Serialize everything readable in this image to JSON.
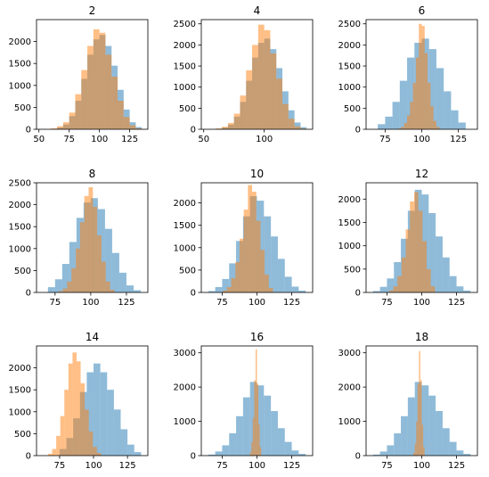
{
  "colors": {
    "blue": "#1f77b4",
    "orange": "#ff7f0e"
  },
  "chart_data": [
    {
      "type": "bar",
      "title": "2",
      "xlim": [
        48,
        140
      ],
      "ylim": [
        0,
        2500
      ],
      "xticks": [
        50,
        75,
        100,
        125
      ],
      "yticks": [
        0,
        500,
        1000,
        1500,
        2000
      ],
      "series": [
        {
          "color": "blue",
          "alpha": 0.5,
          "x": [
            62.5,
            67.5,
            72.5,
            77.5,
            82.5,
            87.5,
            92.5,
            97.5,
            102.5,
            107.5,
            112.5,
            117.5,
            122.5,
            127.5,
            132.5
          ],
          "values": [
            10,
            40,
            110,
            300,
            650,
            1150,
            1700,
            2050,
            2150,
            1900,
            1450,
            900,
            450,
            160,
            50
          ]
        },
        {
          "color": "orange",
          "alpha": 0.5,
          "x": [
            62.5,
            67.5,
            72.5,
            77.5,
            82.5,
            87.5,
            92.5,
            97.5,
            102.5,
            107.5,
            112.5,
            117.5,
            122.5,
            127.5,
            132.5
          ],
          "values": [
            20,
            70,
            160,
            380,
            800,
            1350,
            1900,
            2280,
            2200,
            1700,
            1200,
            650,
            280,
            90,
            20
          ]
        }
      ]
    },
    {
      "type": "bar",
      "title": "4",
      "xlim": [
        48,
        140
      ],
      "ylim": [
        0,
        2600
      ],
      "xticks": [
        50,
        100
      ],
      "yticks": [
        0,
        500,
        1000,
        1500,
        2000,
        2500
      ],
      "series": [
        {
          "color": "blue",
          "alpha": 0.5,
          "x": [
            62.5,
            67.5,
            72.5,
            77.5,
            82.5,
            87.5,
            92.5,
            97.5,
            102.5,
            107.5,
            112.5,
            117.5,
            122.5,
            127.5,
            132.5
          ],
          "values": [
            10,
            40,
            110,
            300,
            650,
            1150,
            1700,
            2050,
            2150,
            1900,
            1450,
            900,
            450,
            160,
            50
          ]
        },
        {
          "color": "orange",
          "alpha": 0.5,
          "x": [
            62.5,
            67.5,
            72.5,
            77.5,
            82.5,
            87.5,
            92.5,
            97.5,
            102.5,
            107.5,
            112.5,
            117.5,
            122.5,
            127.5,
            132.5
          ],
          "values": [
            20,
            60,
            150,
            370,
            800,
            1400,
            2000,
            2480,
            2350,
            1800,
            1200,
            600,
            250,
            70,
            15
          ]
        }
      ]
    },
    {
      "type": "bar",
      "title": "6",
      "xlim": [
        62,
        138
      ],
      "ylim": [
        0,
        2600
      ],
      "xticks": [
        75,
        100,
        125
      ],
      "yticks": [
        0,
        500,
        1000,
        1500,
        2000,
        2500
      ],
      "series": [
        {
          "color": "blue",
          "alpha": 0.5,
          "x": [
            72.5,
            77.5,
            82.5,
            87.5,
            92.5,
            97.5,
            102.5,
            107.5,
            112.5,
            117.5,
            122.5,
            127.5
          ],
          "values": [
            120,
            300,
            650,
            1150,
            1700,
            2050,
            2150,
            1900,
            1450,
            900,
            450,
            160
          ]
        },
        {
          "color": "orange",
          "alpha": 0.5,
          "x": [
            85,
            87,
            89,
            91,
            93,
            95,
            97,
            99,
            101,
            103,
            105,
            107,
            109,
            111
          ],
          "values": [
            20,
            60,
            150,
            330,
            650,
            1100,
            1700,
            2500,
            2450,
            1800,
            1100,
            550,
            200,
            60
          ]
        }
      ]
    },
    {
      "type": "bar",
      "title": "8",
      "xlim": [
        62,
        140
      ],
      "ylim": [
        0,
        2500
      ],
      "xticks": [
        75,
        100,
        125
      ],
      "yticks": [
        0,
        500,
        1000,
        1500,
        2000,
        2500
      ],
      "series": [
        {
          "color": "blue",
          "alpha": 0.5,
          "x": [
            72.5,
            77.5,
            82.5,
            87.5,
            92.5,
            97.5,
            102.5,
            107.5,
            112.5,
            117.5,
            122.5,
            127.5,
            132.5
          ],
          "values": [
            120,
            300,
            650,
            1150,
            1700,
            2050,
            2150,
            1900,
            1450,
            900,
            450,
            160,
            50
          ]
        },
        {
          "color": "orange",
          "alpha": 0.5,
          "x": [
            79,
            82,
            85,
            88,
            91,
            94,
            97,
            100,
            103,
            106,
            109,
            112,
            115
          ],
          "values": [
            30,
            90,
            250,
            550,
            1000,
            1600,
            2200,
            2400,
            1950,
            1300,
            700,
            250,
            60
          ]
        }
      ]
    },
    {
      "type": "bar",
      "title": "10",
      "xlim": [
        60,
        140
      ],
      "ylim": [
        0,
        2450
      ],
      "xticks": [
        75,
        100,
        125
      ],
      "yticks": [
        0,
        500,
        1000,
        1500,
        2000
      ],
      "series": [
        {
          "color": "blue",
          "alpha": 0.5,
          "x": [
            67.5,
            72.5,
            77.5,
            82.5,
            87.5,
            92.5,
            97.5,
            102.5,
            107.5,
            112.5,
            117.5,
            122.5,
            127.5,
            132.5
          ],
          "values": [
            30,
            120,
            300,
            650,
            1150,
            1700,
            2150,
            2050,
            1700,
            1250,
            750,
            350,
            130,
            40
          ]
        },
        {
          "color": "orange",
          "alpha": 0.5,
          "x": [
            77,
            80,
            83,
            86,
            89,
            92,
            95,
            98,
            101,
            104,
            107,
            110
          ],
          "values": [
            40,
            120,
            320,
            680,
            1200,
            1850,
            2400,
            2250,
            1600,
            950,
            400,
            100
          ]
        }
      ]
    },
    {
      "type": "bar",
      "title": "12",
      "xlim": [
        60,
        140
      ],
      "ylim": [
        0,
        2350
      ],
      "xticks": [
        75,
        100,
        125
      ],
      "yticks": [
        0,
        500,
        1000,
        1500,
        2000
      ],
      "series": [
        {
          "color": "blue",
          "alpha": 0.5,
          "x": [
            67.5,
            72.5,
            77.5,
            82.5,
            87.5,
            92.5,
            97.5,
            102.5,
            107.5,
            112.5,
            117.5,
            122.5,
            127.5,
            132.5
          ],
          "values": [
            30,
            120,
            300,
            650,
            1150,
            1750,
            2200,
            2100,
            1700,
            1200,
            750,
            350,
            130,
            40
          ]
        },
        {
          "color": "orange",
          "alpha": 0.5,
          "x": [
            78,
            81,
            84,
            87,
            90,
            93,
            96,
            99,
            102,
            105,
            108
          ],
          "values": [
            40,
            130,
            350,
            750,
            1350,
            1950,
            2150,
            1750,
            1100,
            500,
            130
          ]
        }
      ]
    },
    {
      "type": "bar",
      "title": "14",
      "xlim": [
        58,
        140
      ],
      "ylim": [
        0,
        2500
      ],
      "xticks": [
        75,
        100,
        125
      ],
      "yticks": [
        0,
        500,
        1000,
        1500,
        2000
      ],
      "series": [
        {
          "color": "blue",
          "alpha": 0.5,
          "x": [
            77.5,
            82.5,
            87.5,
            92.5,
            97.5,
            102.5,
            107.5,
            112.5,
            117.5,
            122.5,
            127.5,
            132.5
          ],
          "values": [
            150,
            400,
            850,
            1450,
            1900,
            2100,
            1900,
            1500,
            1050,
            600,
            250,
            80
          ]
        },
        {
          "color": "orange",
          "alpha": 0.5,
          "x": [
            68,
            71,
            74,
            77,
            80,
            83,
            86,
            89,
            92,
            95,
            98,
            101,
            104
          ],
          "values": [
            40,
            150,
            450,
            900,
            1500,
            2100,
            2350,
            2150,
            1650,
            1050,
            550,
            200,
            60
          ]
        }
      ]
    },
    {
      "type": "bar",
      "title": "16",
      "xlim": [
        60,
        140
      ],
      "ylim": [
        0,
        3200
      ],
      "xticks": [
        75,
        100,
        125
      ],
      "yticks": [
        0,
        1000,
        2000,
        3000
      ],
      "series": [
        {
          "color": "blue",
          "alpha": 0.5,
          "x": [
            67.5,
            72.5,
            77.5,
            82.5,
            87.5,
            92.5,
            97.5,
            102.5,
            107.5,
            112.5,
            117.5,
            122.5,
            127.5,
            132.5
          ],
          "values": [
            30,
            120,
            300,
            650,
            1150,
            1700,
            2150,
            2050,
            1750,
            1300,
            800,
            400,
            150,
            50
          ]
        },
        {
          "color": "orange",
          "alpha": 0.5,
          "x": [
            95.5,
            96.5,
            97.5,
            98.5,
            99.5,
            100.5,
            101.5,
            102.5
          ],
          "values": [
            100,
            400,
            1100,
            2200,
            3100,
            2100,
            900,
            250
          ]
        }
      ]
    },
    {
      "type": "bar",
      "title": "18",
      "xlim": [
        60,
        140
      ],
      "ylim": [
        0,
        3200
      ],
      "xticks": [
        75,
        100,
        125
      ],
      "yticks": [
        0,
        1000,
        2000,
        3000
      ],
      "series": [
        {
          "color": "blue",
          "alpha": 0.5,
          "x": [
            67.5,
            72.5,
            77.5,
            82.5,
            87.5,
            92.5,
            97.5,
            102.5,
            107.5,
            112.5,
            117.5,
            122.5,
            127.5,
            132.5
          ],
          "values": [
            30,
            120,
            300,
            650,
            1150,
            1700,
            2150,
            2050,
            1750,
            1300,
            800,
            400,
            150,
            50
          ]
        },
        {
          "color": "orange",
          "alpha": 0.5,
          "x": [
            94.5,
            95.5,
            96.5,
            97.5,
            98.5,
            99.5,
            100.5,
            101.5
          ],
          "values": [
            80,
            350,
            1000,
            2100,
            3050,
            2200,
            900,
            250
          ]
        }
      ]
    }
  ]
}
